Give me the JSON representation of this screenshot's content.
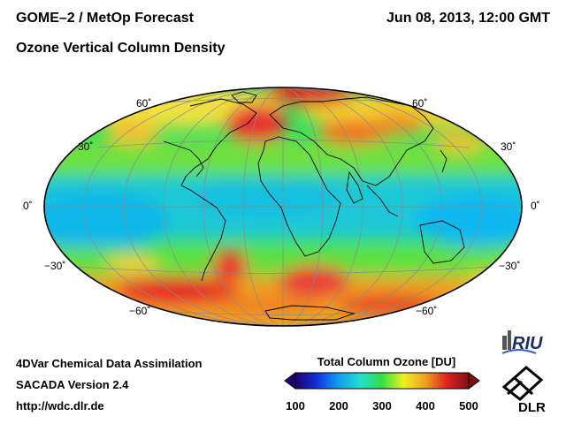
{
  "header": {
    "title_line1": "GOME–2 / MetOp Forecast",
    "title_line2": "Ozone Vertical Column Density",
    "datetime": "Jun 08, 2013, 12:00 GMT"
  },
  "map": {
    "projection": "Hammer (equal-area ellipse)",
    "latitude_labels_left": [
      "60˚",
      "30˚",
      "0˚",
      "−30˚",
      "−60˚"
    ],
    "latitude_labels_right": [
      "60˚",
      "30˚",
      "0˚",
      "−30˚",
      "−60˚"
    ]
  },
  "colorbar": {
    "title": "Total Column Ozone [DU]",
    "ticks": [
      "100",
      "200",
      "300",
      "400",
      "500"
    ],
    "colors": [
      "#200070",
      "#1030e0",
      "#10a0f0",
      "#20e0d0",
      "#30e040",
      "#f0f020",
      "#f0a020",
      "#e02020",
      "#801010"
    ]
  },
  "footer": {
    "line1": "4DVar Chemical Data Assimilation",
    "line2": "SACADA Version 2.4",
    "line3": "http://wdc.dlr.de"
  },
  "logos": {
    "riu": "RIU",
    "dlr": "DLR"
  }
}
